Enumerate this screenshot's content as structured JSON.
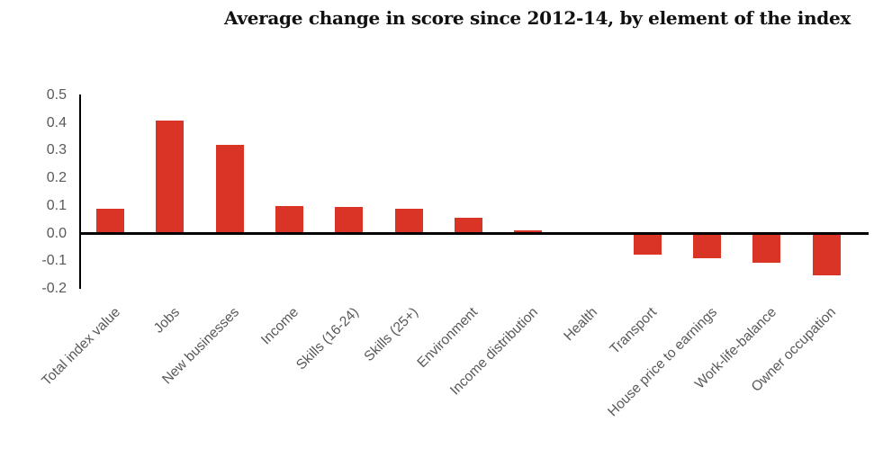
{
  "chart_data": {
    "type": "bar",
    "title": "Average change in score since 2012-14, by element of the index",
    "categories": [
      "Total index value",
      "Jobs",
      "New businesses",
      "Income",
      "Skills (16-24)",
      "Skills  (25+)",
      "Environment",
      "Income distribution",
      "Health",
      "Transport",
      "House price to earnings",
      "Work-life-balance",
      "Owner occupation"
    ],
    "values": [
      0.088,
      0.41,
      0.32,
      0.098,
      0.095,
      0.088,
      0.056,
      0.013,
      0,
      -0.076,
      -0.088,
      -0.105,
      -0.152
    ],
    "xlabel": "",
    "ylabel": "",
    "ylim": [
      -0.2,
      0.5
    ],
    "yticks": [
      0.5,
      0.4,
      0.3,
      0.2,
      0.1,
      0.0,
      -0.1,
      -0.2
    ],
    "ytick_labels": [
      "0.5",
      "0.4",
      "0.3",
      "0.2",
      "0.1",
      "0.0",
      "-0.1",
      "-0.2"
    ],
    "grid": false,
    "legend": false,
    "bar_color": "#d93425",
    "axis_color": "#000000",
    "tick_label_color": "#595959"
  }
}
